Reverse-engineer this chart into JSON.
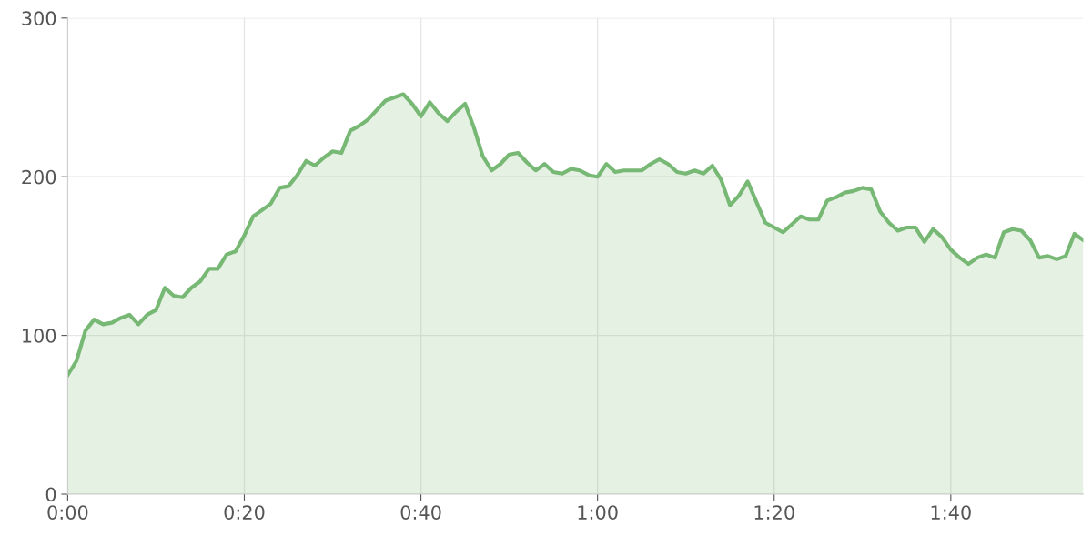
{
  "chart_data": {
    "type": "area",
    "color": "#77b874",
    "x": [
      0,
      1,
      2,
      3,
      4,
      5,
      6,
      7,
      8,
      9,
      10,
      11,
      12,
      13,
      14,
      15,
      16,
      17,
      18,
      19,
      20,
      21,
      22,
      23,
      24,
      25,
      26,
      27,
      28,
      29,
      30,
      31,
      32,
      33,
      34,
      35,
      36,
      37,
      38,
      39,
      40,
      41,
      42,
      43,
      44,
      45,
      46,
      47,
      48,
      49,
      50,
      51,
      52,
      53,
      54,
      55,
      56,
      57,
      58,
      59,
      60,
      61,
      62,
      63,
      64,
      65,
      66,
      67,
      68,
      69,
      70,
      71,
      72,
      73,
      74,
      75,
      76,
      77,
      78,
      79,
      80,
      81,
      82,
      83,
      84,
      85,
      86,
      87,
      88,
      89,
      90,
      91,
      92,
      93,
      94,
      95,
      96,
      97,
      98,
      99,
      100,
      101,
      102,
      103,
      104,
      105,
      106,
      107,
      108,
      109,
      110,
      111,
      112,
      113,
      114,
      115
    ],
    "values": [
      75,
      84,
      103,
      110,
      107,
      108,
      111,
      113,
      107,
      113,
      116,
      130,
      125,
      124,
      130,
      134,
      142,
      142,
      151,
      153,
      163,
      175,
      179,
      183,
      193,
      194,
      201,
      210,
      207,
      212,
      216,
      215,
      229,
      232,
      236,
      242,
      248,
      250,
      252,
      246,
      238,
      247,
      240,
      235,
      241,
      246,
      231,
      213,
      204,
      208,
      214,
      215,
      209,
      204,
      208,
      203,
      202,
      205,
      204,
      201,
      200,
      208,
      203,
      204,
      204,
      204,
      208,
      211,
      208,
      203,
      202,
      204,
      202,
      207,
      198,
      182,
      188,
      197,
      184,
      171,
      168,
      165,
      170,
      175,
      173,
      173,
      185,
      187,
      190,
      191,
      193,
      192,
      178,
      171,
      166,
      168,
      168,
      159,
      167,
      162,
      154,
      149,
      145,
      149,
      151,
      149,
      165,
      167,
      166,
      160,
      149,
      150,
      148,
      150,
      164,
      160
    ],
    "xlim": [
      0,
      115
    ],
    "ylim": [
      0,
      300
    ],
    "xticks": [
      {
        "value": 0,
        "label": "0:00"
      },
      {
        "value": 20,
        "label": "0:20"
      },
      {
        "value": 40,
        "label": "0:40"
      },
      {
        "value": 60,
        "label": "1:00"
      },
      {
        "value": 80,
        "label": "1:20"
      },
      {
        "value": 100,
        "label": "1:40"
      }
    ],
    "yticks": [
      0,
      100,
      200,
      300
    ],
    "grid": true
  }
}
